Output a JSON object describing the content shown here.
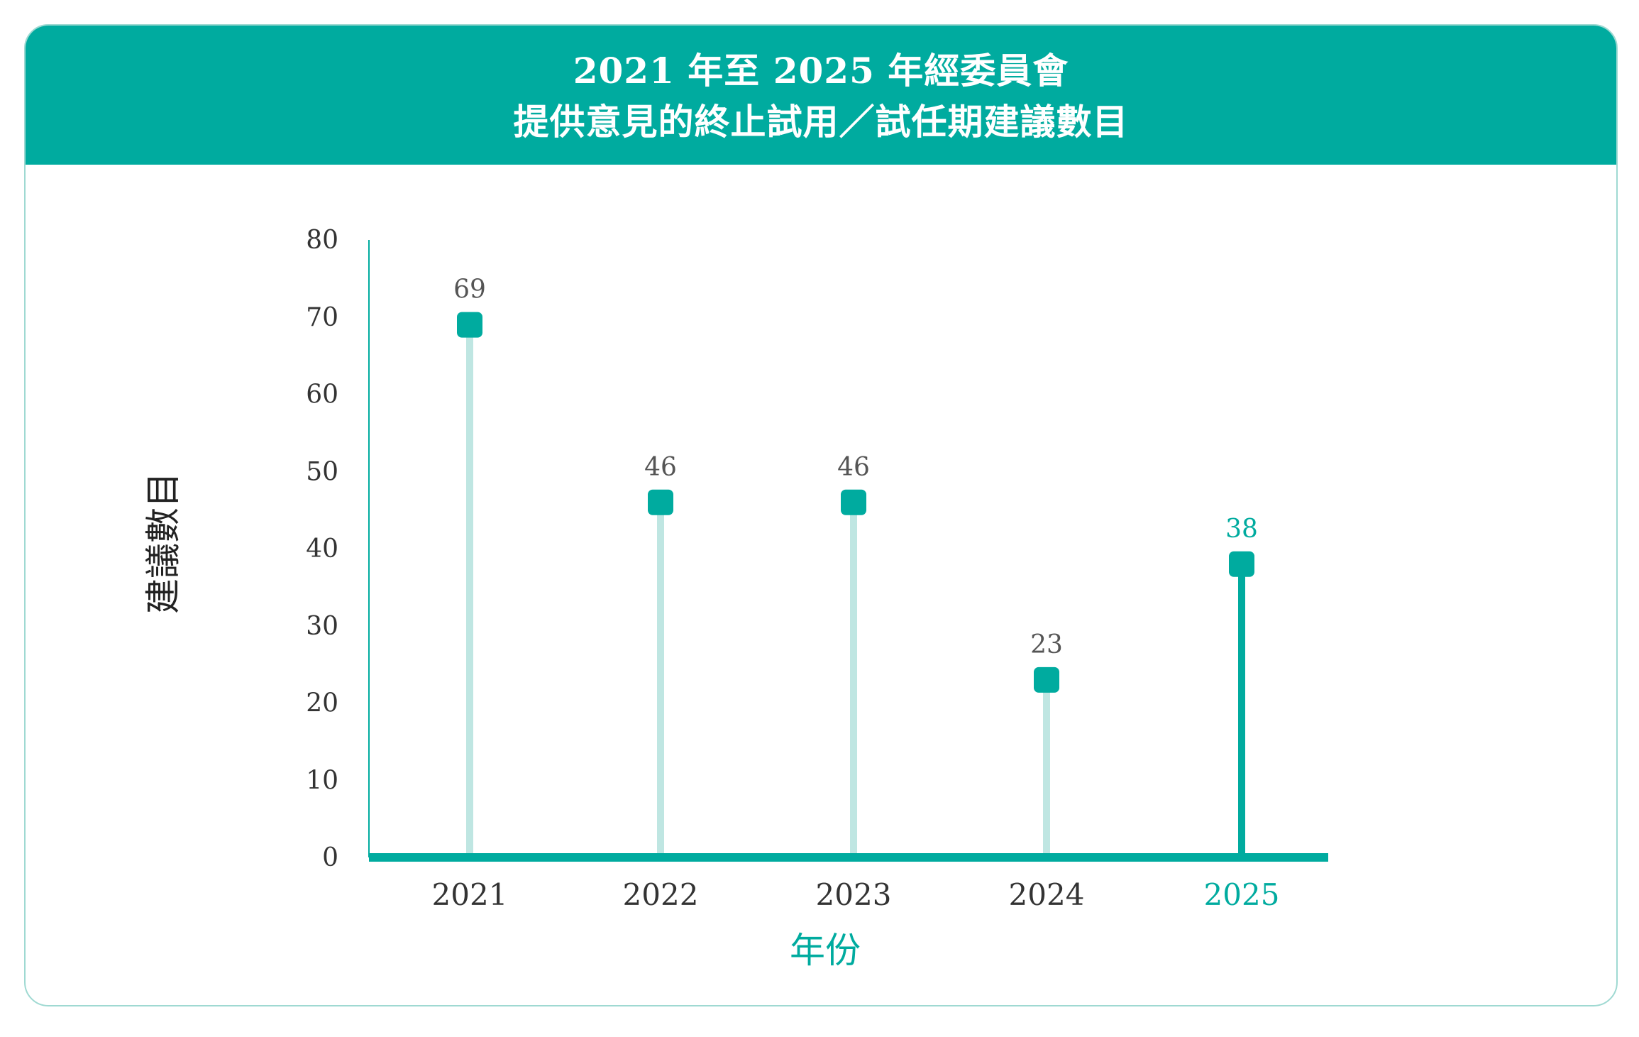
{
  "header": {
    "title_line1": "2021 年至 2025 年經委員會",
    "title_line2": "提供意見的終止試用／試任期建議數目"
  },
  "colors": {
    "accent": "#00ab9f",
    "stem_light": "#bfe6e2",
    "text_dark": "#555555",
    "border": "#9fd9d2"
  },
  "chart_data": {
    "type": "bar",
    "categories": [
      "2021",
      "2022",
      "2023",
      "2024",
      "2025"
    ],
    "values": [
      69,
      46,
      46,
      23,
      38
    ],
    "highlight_category": "2025",
    "title": "2021 年至 2025 年經委員會 提供意見的終止試用／試任期建議數目",
    "xlabel": "年份",
    "ylabel": "建議數目",
    "ylim": [
      0,
      80
    ],
    "yticks": [
      "0",
      "10",
      "20",
      "30",
      "40",
      "50",
      "60",
      "70",
      "80"
    ],
    "grid": false,
    "legend": "none"
  }
}
